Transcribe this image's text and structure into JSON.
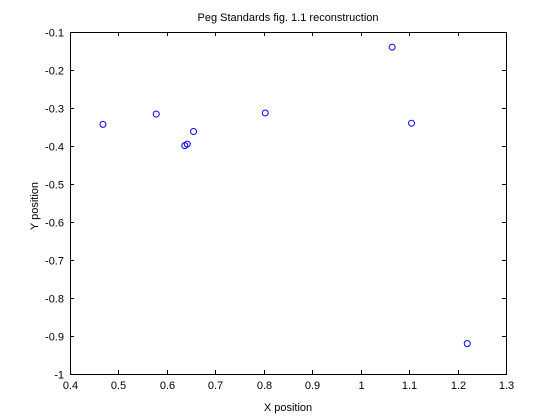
{
  "chart_data": {
    "type": "scatter",
    "title": "Peg Standards fig. 1.1 reconstruction",
    "xlabel": "X position",
    "ylabel": "Y position",
    "xlim": [
      0.4,
      1.3
    ],
    "ylim": [
      -1,
      -0.1
    ],
    "xticks": [
      0.4,
      0.5,
      0.6,
      0.7,
      0.8,
      0.9,
      1,
      1.1,
      1.2,
      1.3
    ],
    "xtick_labels": [
      "0.4",
      "0.5",
      "0.6",
      "0.7",
      "0.8",
      "0.9",
      "1",
      "1.1",
      "1.2",
      "1.3"
    ],
    "yticks": [
      -1,
      -0.9,
      -0.8,
      -0.7,
      -0.6,
      -0.5,
      -0.4,
      -0.3,
      -0.2,
      -0.1
    ],
    "ytick_labels": [
      "-1",
      "-0.9",
      "-0.8",
      "-0.7",
      "-0.6",
      "-0.5",
      "-0.4",
      "-0.3",
      "-0.2",
      "-0.1"
    ],
    "grid": false,
    "marker": "open-circle",
    "marker_color": "#0000ff",
    "axis_color": "#000000",
    "points": [
      {
        "x": 0.468,
        "y": -0.343
      },
      {
        "x": 0.578,
        "y": -0.316
      },
      {
        "x": 0.637,
        "y": -0.399
      },
      {
        "x": 0.642,
        "y": -0.395
      },
      {
        "x": 0.655,
        "y": -0.362
      },
      {
        "x": 0.803,
        "y": -0.313
      },
      {
        "x": 1.065,
        "y": -0.14
      },
      {
        "x": 1.105,
        "y": -0.34
      },
      {
        "x": 1.22,
        "y": -0.92
      }
    ]
  }
}
